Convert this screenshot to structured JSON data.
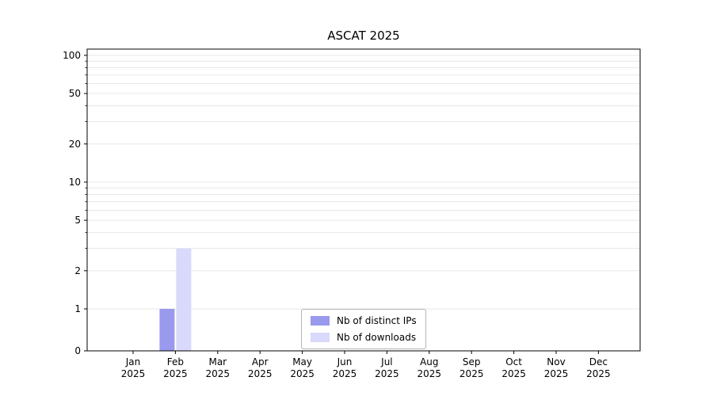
{
  "chart_data": {
    "type": "bar",
    "title": "ASCAT 2025",
    "categories": [
      "Jan",
      "Feb",
      "Mar",
      "Apr",
      "May",
      "Jun",
      "Jul",
      "Aug",
      "Sep",
      "Oct",
      "Nov",
      "Dec"
    ],
    "category_year": "2025",
    "series": [
      {
        "name": "Nb of distinct IPs",
        "color": "#9999ee",
        "values": [
          0,
          1,
          0,
          0,
          0,
          0,
          0,
          0,
          0,
          0,
          0,
          0
        ]
      },
      {
        "name": "Nb of downloads",
        "color": "#d9d9fb",
        "values": [
          0,
          3,
          0,
          0,
          0,
          0,
          0,
          0,
          0,
          0,
          0,
          0
        ]
      }
    ],
    "yscale": "symlog",
    "ytick_labels": [
      0,
      1,
      2,
      5,
      10,
      20,
      50,
      100
    ],
    "ylim": [
      0,
      112
    ],
    "grid": {
      "which": "major+minor",
      "color": "#e7e7e7"
    },
    "legend_position": "lower center"
  }
}
